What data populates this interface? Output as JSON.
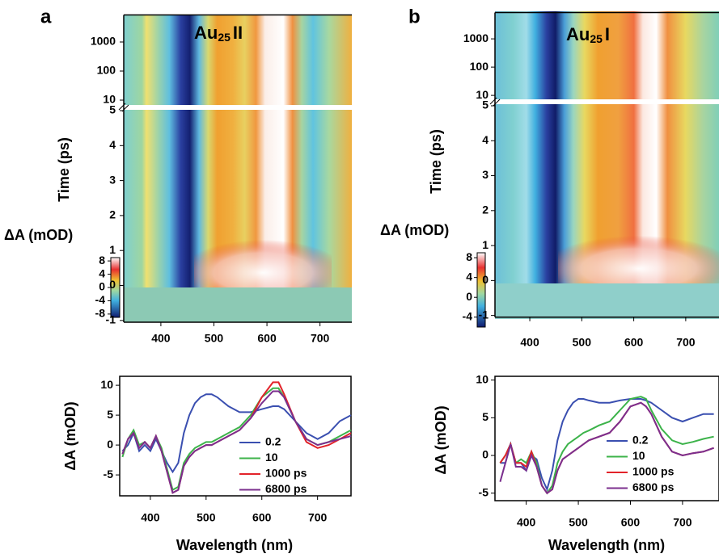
{
  "chart_data": [
    {
      "type": "heatmap",
      "panel": "a",
      "title": {
        "main": "Au",
        "sub": "25",
        "rest": "II"
      },
      "ylabel": "Time (ps)",
      "xlim": [
        330,
        760
      ],
      "xticks": [
        400,
        500,
        600,
        700
      ],
      "ylim": [
        -1.05,
        5
      ],
      "yticks": [
        -1,
        0,
        1,
        2,
        3,
        4,
        5
      ],
      "upper_ylim": [
        8,
        8000
      ],
      "upper_yticks": [
        10,
        100,
        1000
      ],
      "upper_log": true,
      "colorbar_label": "ΔA (mOD)",
      "clim": [
        -9,
        9
      ],
      "cticks": [
        8,
        4,
        0,
        -4,
        -8
      ]
    },
    {
      "type": "line",
      "xlabel": "Wavelength (nm)",
      "ylabel": "ΔA (mOD)",
      "xlim": [
        345,
        760
      ],
      "xticks": [
        400,
        500,
        600,
        700
      ],
      "ylim": [
        -8.5,
        11.5
      ],
      "yticks": [
        -5,
        0,
        5,
        10
      ],
      "legend": "lower right",
      "x": [
        350,
        360,
        370,
        380,
        390,
        400,
        410,
        420,
        430,
        440,
        450,
        460,
        470,
        480,
        490,
        500,
        510,
        520,
        540,
        560,
        580,
        600,
        620,
        630,
        640,
        660,
        680,
        700,
        720,
        740,
        760
      ],
      "series": [
        {
          "name": "0.2",
          "color": "#3a4fb0",
          "values": [
            -1,
            0,
            2,
            -1,
            0,
            -1,
            1,
            -1,
            -3,
            -4.5,
            -3,
            2,
            5,
            7,
            8,
            8.5,
            8.5,
            8,
            6.5,
            5.5,
            5.5,
            6,
            6.5,
            6.5,
            6,
            4,
            2,
            1,
            2,
            4,
            5
          ]
        },
        {
          "name": "10",
          "color": "#3cb34a",
          "values": [
            -2,
            1,
            2.5,
            0,
            0.5,
            -0.5,
            1.5,
            -0.5,
            -4,
            -7.5,
            -7,
            -3,
            -1.5,
            -0.5,
            0,
            0.5,
            0.5,
            1,
            2,
            3,
            5,
            8,
            9.5,
            9.5,
            8,
            4,
            1,
            0,
            0.5,
            1.5,
            2.5
          ]
        },
        {
          "name": "1000 ps",
          "color": "#e2232a",
          "values": [
            -1.5,
            1,
            2,
            -0.5,
            0.5,
            -0.5,
            1.5,
            -1,
            -4.5,
            -8,
            -7.5,
            -3.5,
            -2,
            -1,
            -0.5,
            0,
            0,
            0.5,
            1.5,
            2.5,
            4.5,
            8,
            10.5,
            10.5,
            8.5,
            4,
            0.5,
            -0.5,
            0,
            1,
            2
          ]
        },
        {
          "name": "6800 ps",
          "color": "#7b2f8e",
          "values": [
            -1.5,
            1,
            2,
            -0.5,
            0.5,
            -0.5,
            1.5,
            -1,
            -4.5,
            -8,
            -7.5,
            -3.5,
            -2,
            -1,
            -0.5,
            0,
            0,
            0.5,
            1.5,
            2.5,
            4.5,
            7,
            9,
            9,
            8,
            4,
            1,
            0,
            0.5,
            1,
            1.5
          ]
        }
      ]
    },
    {
      "type": "heatmap",
      "panel": "b",
      "title": {
        "main": "Au",
        "sub": "25",
        "rest": "I"
      },
      "ylabel": "Time (ps)",
      "xlim": [
        333,
        764
      ],
      "xticks": [
        400,
        500,
        600,
        700
      ],
      "ylim": [
        -1.05,
        5
      ],
      "yticks": [
        -1,
        0,
        1,
        2,
        3,
        4,
        5
      ],
      "upper_ylim": [
        8,
        8000
      ],
      "upper_yticks": [
        10,
        100,
        1000
      ],
      "upper_log": true,
      "colorbar_label": "ΔA (mOD)",
      "clim": [
        -6,
        9
      ],
      "cticks": [
        8,
        4,
        0,
        -4
      ]
    },
    {
      "type": "line",
      "xlabel": "Wavelength (nm)",
      "ylabel": "ΔA (mOD)",
      "xlim": [
        340,
        770
      ],
      "xticks": [
        400,
        500,
        600,
        700
      ],
      "ylim": [
        -6,
        10.5
      ],
      "yticks": [
        -5,
        0,
        5,
        10
      ],
      "legend": "lower right",
      "x": [
        350,
        360,
        370,
        380,
        390,
        400,
        410,
        420,
        430,
        440,
        450,
        460,
        470,
        480,
        490,
        500,
        510,
        520,
        540,
        560,
        580,
        600,
        620,
        630,
        640,
        660,
        680,
        700,
        720,
        740,
        760
      ],
      "series": [
        {
          "name": "0.2",
          "color": "#3a4fb0",
          "values": [
            -1,
            -1,
            1.5,
            -1,
            -1,
            -2,
            0,
            -0.5,
            -3,
            -4.5,
            -2,
            2,
            4.5,
            6,
            7,
            7.5,
            7.5,
            7.3,
            7,
            7,
            7.3,
            7.5,
            7.5,
            7.3,
            7,
            6,
            5,
            4.5,
            5,
            5.5,
            5.5
          ]
        },
        {
          "name": "10",
          "color": "#3cb34a",
          "values": [
            -1,
            0,
            1.5,
            -1,
            -0.5,
            -1,
            0.5,
            -1,
            -4,
            -5,
            -4,
            -1,
            0.5,
            1.5,
            2,
            2.5,
            3,
            3.3,
            4,
            4.5,
            6,
            7.5,
            7.8,
            7.5,
            6,
            3.5,
            2,
            1.5,
            1.8,
            2.2,
            2.5
          ]
        },
        {
          "name": "1000 ps",
          "color": "#e2232a",
          "values": [
            -1,
            0,
            1.5,
            -1,
            -1,
            -1.5,
            0.5,
            -1.5,
            -4,
            -5,
            -4.5,
            -2,
            -0.5,
            0,
            0.5,
            1,
            1.5,
            2,
            2.5,
            3,
            4.5,
            6.5,
            7,
            6.5,
            5.5,
            2.5,
            0.5,
            0,
            0.3,
            0.5,
            1
          ]
        },
        {
          "name": "6800 ps",
          "color": "#7b2f8e",
          "values": [
            -3.5,
            -1,
            1.5,
            -1.5,
            -1.5,
            -2,
            0,
            -1.5,
            -4,
            -5,
            -4.5,
            -2,
            -0.5,
            0,
            0.5,
            1,
            1.5,
            2,
            2.5,
            3,
            4.5,
            6.5,
            7,
            6.5,
            5.5,
            2.5,
            0.5,
            0,
            0.3,
            0.5,
            1
          ]
        }
      ]
    }
  ]
}
